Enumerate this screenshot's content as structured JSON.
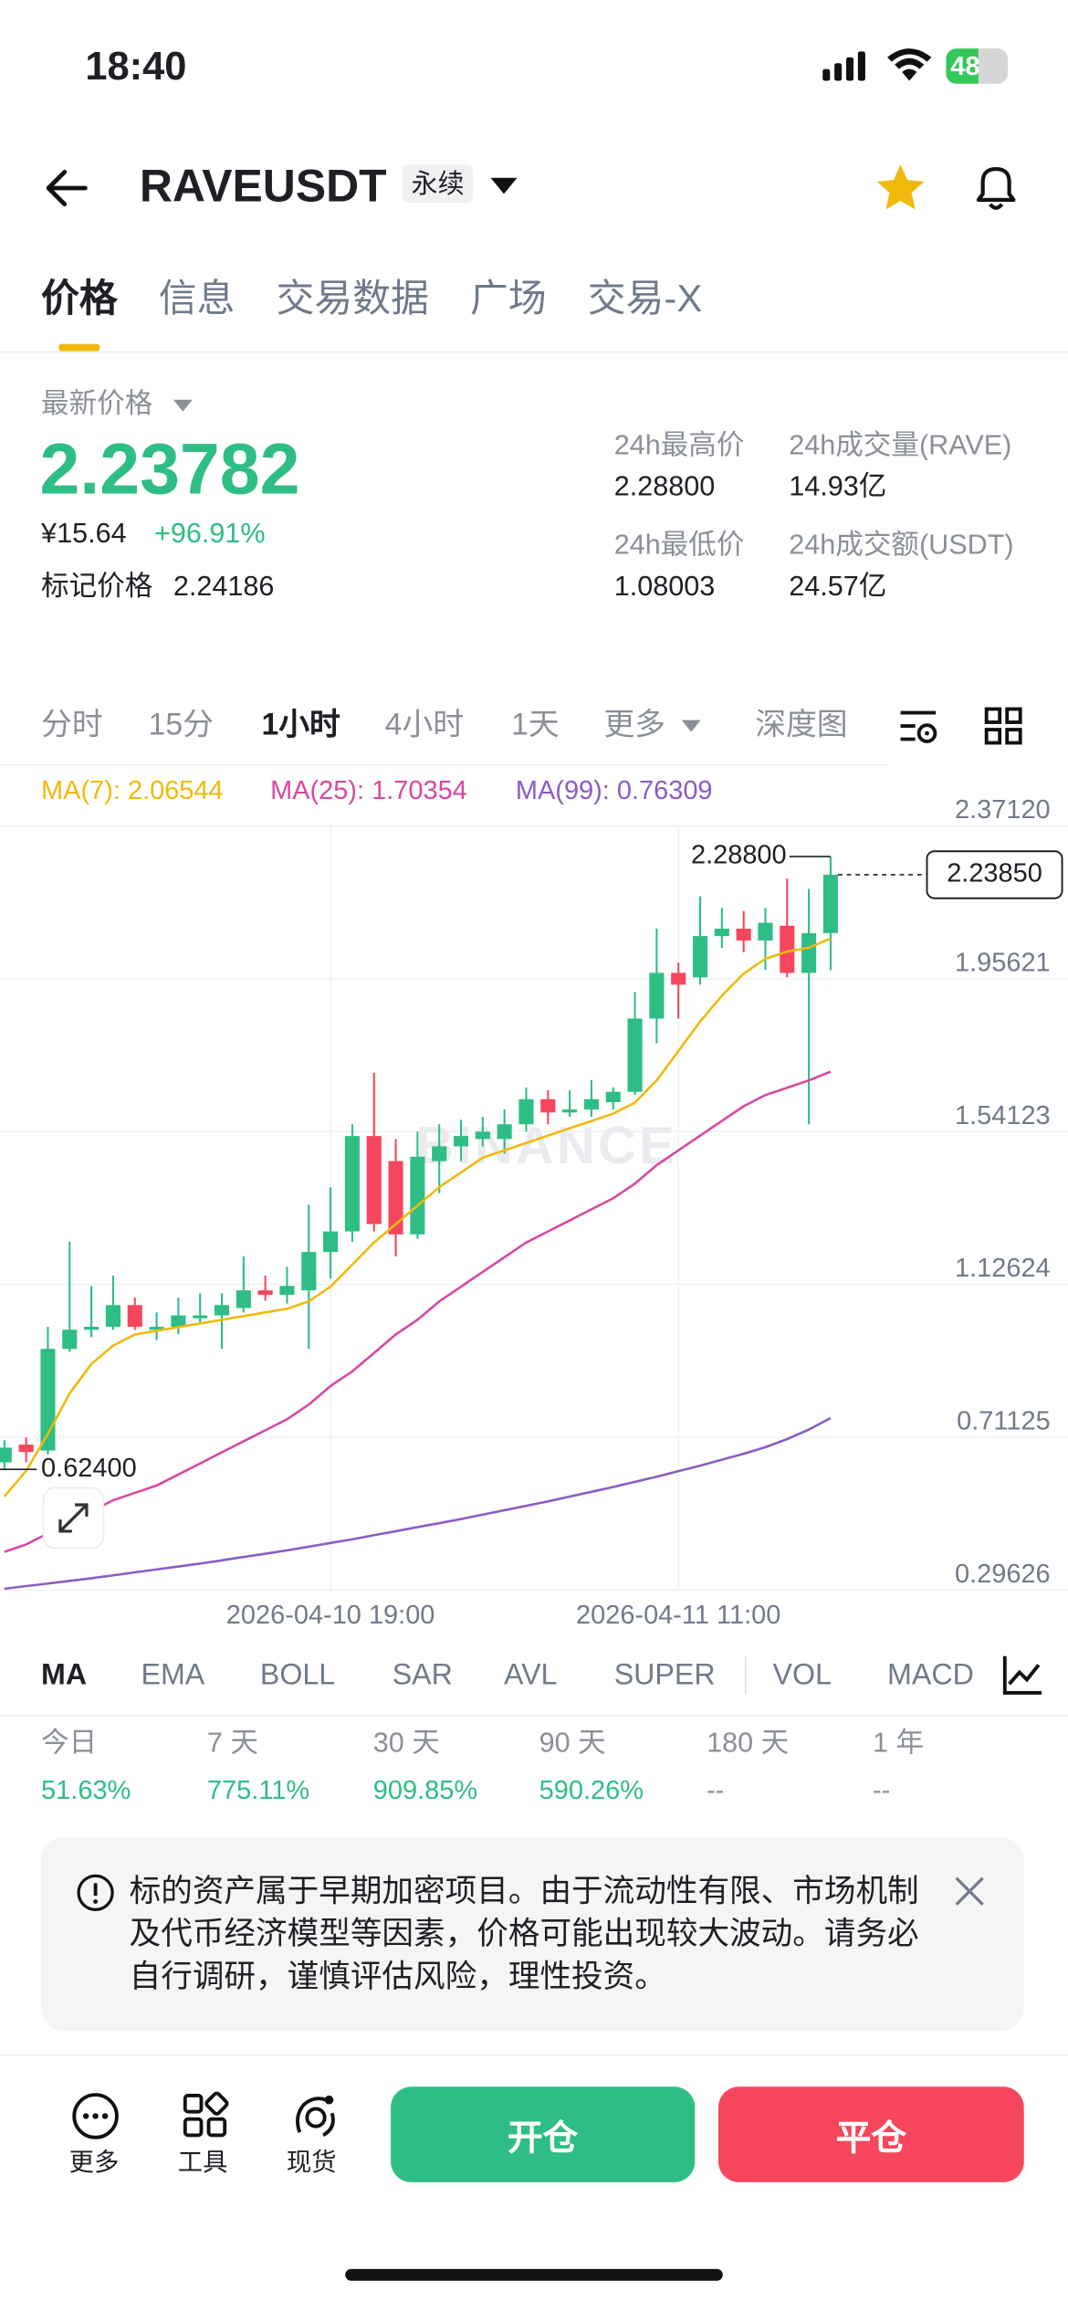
{
  "status_bar": {
    "time": "18:40",
    "battery": "48"
  },
  "header": {
    "symbol": "RAVEUSDT",
    "badge": "永续"
  },
  "tabs": [
    "价格",
    "信息",
    "交易数据",
    "广场",
    "交易-X"
  ],
  "price": {
    "label": "最新价格",
    "last": "2.23782",
    "cny": "¥15.64",
    "change": "+96.91%",
    "mark_label": "标记价格",
    "mark": "2.24186"
  },
  "stats": [
    {
      "label": "24h最高价",
      "value": "2.28800"
    },
    {
      "label": "24h成交量(RAVE)",
      "value": "14.93亿"
    },
    {
      "label": "24h最低价",
      "value": "1.08003"
    },
    {
      "label": "24h成交额(USDT)",
      "value": "24.57亿"
    }
  ],
  "intervals": [
    "分时",
    "15分",
    "1小时",
    "4小时",
    "1天",
    "更多",
    "深度图"
  ],
  "chart_data": {
    "type": "candlestick",
    "watermark": "BINANCE",
    "categories": [
      null,
      null,
      null,
      null,
      null,
      null,
      null,
      null,
      null,
      null,
      null,
      null,
      null,
      null,
      null,
      "2026-04-10 19:00",
      null,
      null,
      null,
      null,
      null,
      null,
      null,
      null,
      null,
      null,
      null,
      null,
      null,
      null,
      null,
      "2026-04-11 11:00",
      null,
      null,
      null,
      null,
      null,
      null,
      null
    ],
    "open": [
      0.643,
      0.691,
      0.675,
      0.951,
      1.003,
      1.011,
      1.07,
      1.003,
      1.011,
      1.034,
      1.042,
      1.062,
      1.11,
      1.098,
      1.11,
      1.214,
      1.27,
      1.529,
      1.461,
      1.262,
      1.461,
      1.501,
      1.521,
      1.521,
      1.561,
      1.629,
      1.593,
      1.601,
      1.621,
      1.649,
      1.848,
      1.972,
      1.96,
      2.072,
      2.092,
      2.06,
      2.1,
      1.972,
      2.08
    ],
    "high": [
      0.703,
      0.711,
      1.011,
      1.242,
      1.122,
      1.15,
      1.09,
      1.05,
      1.09,
      1.102,
      1.102,
      1.202,
      1.15,
      1.174,
      1.342,
      1.39,
      1.561,
      1.701,
      1.521,
      1.541,
      1.561,
      1.573,
      1.581,
      1.601,
      1.661,
      1.653,
      1.653,
      1.681,
      1.661,
      1.92,
      2.092,
      2.0,
      2.18,
      2.148,
      2.14,
      2.148,
      2.228,
      2.2,
      2.288
    ],
    "low": [
      0.624,
      0.643,
      0.664,
      0.943,
      0.983,
      1.003,
      1.003,
      0.975,
      0.991,
      1.022,
      0.951,
      1.05,
      1.082,
      1.074,
      0.951,
      1.142,
      1.242,
      1.27,
      1.202,
      1.25,
      1.374,
      1.461,
      1.501,
      1.481,
      1.541,
      1.561,
      1.581,
      1.581,
      1.601,
      1.641,
      1.781,
      1.848,
      1.94,
      2.04,
      2.028,
      1.98,
      1.96,
      1.561,
      1.98
    ],
    "close": [
      0.683,
      0.671,
      0.951,
      1.003,
      1.011,
      1.07,
      1.011,
      1.011,
      1.042,
      1.042,
      1.07,
      1.11,
      1.098,
      1.122,
      1.214,
      1.27,
      1.529,
      1.29,
      1.262,
      1.473,
      1.501,
      1.529,
      1.541,
      1.561,
      1.629,
      1.593,
      1.601,
      1.629,
      1.649,
      1.848,
      1.972,
      1.94,
      2.072,
      2.092,
      2.06,
      2.108,
      1.972,
      2.08,
      2.2385
    ],
    "up_color": "#2ebd85",
    "down_color": "#f6465d",
    "lines": [
      {
        "legend": "MA(7): 2.06544",
        "color": "#f0b90b",
        "values": [
          0.55,
          0.62,
          0.72,
          0.83,
          0.91,
          0.96,
          0.99,
          1.0,
          1.01,
          1.02,
          1.03,
          1.04,
          1.05,
          1.06,
          1.08,
          1.12,
          1.18,
          1.24,
          1.29,
          1.34,
          1.39,
          1.43,
          1.47,
          1.49,
          1.51,
          1.53,
          1.55,
          1.57,
          1.59,
          1.62,
          1.68,
          1.76,
          1.84,
          1.91,
          1.97,
          2.01,
          2.03,
          2.04,
          2.06544
        ]
      },
      {
        "legend": "MA(25): 1.70354",
        "color": "#d9479f",
        "values": [
          0.4,
          0.42,
          0.45,
          0.48,
          0.51,
          0.54,
          0.56,
          0.58,
          0.61,
          0.64,
          0.67,
          0.7,
          0.73,
          0.76,
          0.8,
          0.85,
          0.89,
          0.94,
          0.99,
          1.03,
          1.08,
          1.12,
          1.16,
          1.2,
          1.24,
          1.27,
          1.3,
          1.33,
          1.36,
          1.4,
          1.45,
          1.49,
          1.53,
          1.57,
          1.61,
          1.64,
          1.66,
          1.68,
          1.70354
        ]
      },
      {
        "legend": "MA(99): 0.76309",
        "color": "#8a5cc4",
        "values": [
          0.3,
          0.307,
          0.314,
          0.321,
          0.328,
          0.336,
          0.344,
          0.352,
          0.36,
          0.368,
          0.377,
          0.386,
          0.395,
          0.404,
          0.414,
          0.424,
          0.434,
          0.445,
          0.456,
          0.467,
          0.478,
          0.489,
          0.501,
          0.513,
          0.525,
          0.537,
          0.55,
          0.563,
          0.576,
          0.59,
          0.604,
          0.619,
          0.634,
          0.65,
          0.666,
          0.684,
          0.706,
          0.732,
          0.76309
        ]
      }
    ],
    "ylim": [
      0.29626,
      2.3712
    ],
    "yticks": [
      {
        "value": 2.3712,
        "label": "2.37120"
      },
      1.95621,
      1.54123,
      1.12624,
      0.71125,
      0.29626
    ],
    "grid": true,
    "max_label": {
      "value": 2.288,
      "label": "2.28800"
    },
    "min_label": {
      "value": 0.624,
      "label": "0.62400"
    },
    "last_label": {
      "value": 2.2385,
      "label": "2.23850"
    }
  },
  "indicators": [
    "MA",
    "EMA",
    "BOLL",
    "SAR",
    "AVL",
    "SUPER",
    "VOL",
    "MACD"
  ],
  "returns": [
    {
      "label": "今日",
      "value": "51.63%"
    },
    {
      "label": "7 天",
      "value": "775.11%"
    },
    {
      "label": "30 天",
      "value": "909.85%"
    },
    {
      "label": "90 天",
      "value": "590.26%"
    },
    {
      "label": "180 天",
      "value": "--"
    },
    {
      "label": "1 年",
      "value": "--"
    }
  ],
  "notice": "标的资产属于早期加密项目。由于流动性有限、市场机制及代币经济模型等因素，价格可能出现较大波动。请务必自行调研，谨慎评估风险，理性投资。",
  "bottom_bar": {
    "tools": [
      "更多",
      "工具",
      "现货"
    ],
    "open": "开仓",
    "close": "平仓"
  }
}
